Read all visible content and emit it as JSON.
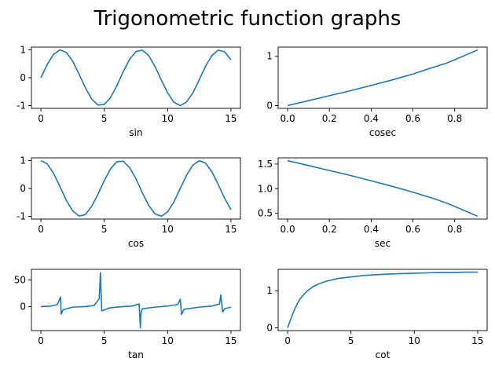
{
  "title": "Trigonometric function graphs",
  "colors": {
    "line": "#1f77b4",
    "axis": "#000000",
    "background": "#ffffff"
  },
  "chart_data": [
    {
      "id": "sin",
      "type": "line",
      "title": "",
      "xlabel": "sin",
      "ylabel": "",
      "xlim": [
        0,
        15
      ],
      "ylim": [
        -1,
        1
      ],
      "xticks": [
        0,
        5,
        10,
        15
      ],
      "yticks": [
        -1,
        0,
        1
      ],
      "grid": false,
      "series": [
        {
          "x": [
            0,
            0.5,
            1,
            1.5,
            2,
            2.5,
            3,
            3.5,
            4,
            4.5,
            5,
            5.5,
            6,
            6.5,
            7,
            7.5,
            8,
            8.5,
            9,
            9.5,
            10,
            10.5,
            11,
            11.5,
            12,
            12.5,
            13,
            13.5,
            14,
            14.5,
            15
          ],
          "y": [
            0,
            0.48,
            0.84,
            1.0,
            0.91,
            0.6,
            0.14,
            -0.35,
            -0.76,
            -0.98,
            -0.96,
            -0.71,
            -0.28,
            0.22,
            0.66,
            0.94,
            0.99,
            0.8,
            0.41,
            -0.08,
            -0.54,
            -0.88,
            -1.0,
            -0.87,
            -0.54,
            -0.07,
            0.42,
            0.8,
            0.99,
            0.93,
            0.65
          ]
        }
      ]
    },
    {
      "id": "cosec",
      "type": "line",
      "title": "",
      "xlabel": "cosec",
      "ylabel": "",
      "xlim": [
        0,
        0.91
      ],
      "ylim": [
        0,
        1.13
      ],
      "xticks": [
        0.0,
        0.2,
        0.4,
        0.6,
        0.8
      ],
      "yticks": [
        0,
        1
      ],
      "grid": false,
      "series": [
        {
          "x": [
            0,
            0.1,
            0.2,
            0.3,
            0.4,
            0.5,
            0.6,
            0.7,
            0.76,
            0.8,
            0.85,
            0.91
          ],
          "y": [
            0,
            0.1,
            0.2,
            0.3,
            0.41,
            0.52,
            0.64,
            0.78,
            0.86,
            0.93,
            1.02,
            1.13
          ]
        }
      ]
    },
    {
      "id": "cos",
      "type": "line",
      "title": "",
      "xlabel": "cos",
      "ylabel": "",
      "xlim": [
        0,
        15
      ],
      "ylim": [
        -1,
        1
      ],
      "xticks": [
        0,
        5,
        10,
        15
      ],
      "yticks": [
        -1,
        0,
        1
      ],
      "grid": false,
      "series": [
        {
          "x": [
            0,
            0.5,
            1,
            1.5,
            2,
            2.5,
            3,
            3.5,
            4,
            4.5,
            5,
            5.5,
            6,
            6.5,
            7,
            7.5,
            8,
            8.5,
            9,
            9.5,
            10,
            10.5,
            11,
            11.5,
            12,
            12.5,
            13,
            13.5,
            14,
            14.5,
            15
          ],
          "y": [
            1.0,
            0.88,
            0.54,
            0.07,
            -0.42,
            -0.8,
            -0.99,
            -0.94,
            -0.65,
            -0.21,
            0.28,
            0.71,
            0.96,
            0.98,
            0.75,
            0.35,
            -0.15,
            -0.6,
            -0.91,
            -1.0,
            -0.84,
            -0.48,
            0.0,
            0.48,
            0.84,
            1.0,
            0.91,
            0.6,
            0.14,
            -0.35,
            -0.76
          ]
        }
      ]
    },
    {
      "id": "sec",
      "type": "line",
      "title": "",
      "xlabel": "sec",
      "ylabel": "",
      "xlim": [
        0,
        0.91
      ],
      "ylim": [
        0.44,
        1.57
      ],
      "xticks": [
        0.0,
        0.2,
        0.4,
        0.6,
        0.8
      ],
      "yticks": [
        0.5,
        1.0,
        1.5
      ],
      "grid": false,
      "series": [
        {
          "x": [
            0,
            0.1,
            0.2,
            0.3,
            0.4,
            0.5,
            0.6,
            0.7,
            0.76,
            0.8,
            0.85,
            0.91
          ],
          "y": [
            1.57,
            1.47,
            1.37,
            1.27,
            1.16,
            1.05,
            0.93,
            0.8,
            0.71,
            0.64,
            0.55,
            0.44
          ]
        }
      ]
    },
    {
      "id": "tan",
      "type": "line",
      "title": "",
      "xlabel": "tan",
      "ylabel": "",
      "xlim": [
        0,
        15
      ],
      "ylim": [
        -40,
        65
      ],
      "xticks": [
        0,
        5,
        10,
        15
      ],
      "yticks": [
        0,
        50
      ],
      "grid": false,
      "series": [
        {
          "x": [
            0,
            0.8,
            1.3,
            1.55,
            1.6,
            1.75,
            2.5,
            3.5,
            4.2,
            4.6,
            4.7,
            4.8,
            5.5,
            6.5,
            7.2,
            7.75,
            7.85,
            7.9,
            8.0,
            9.0,
            10.0,
            10.8,
            11.0,
            11.1,
            11.3,
            12.5,
            13.5,
            14.1,
            14.2,
            14.35,
            14.5,
            15.0
          ],
          "y": [
            0,
            1,
            4,
            18,
            -14,
            -6,
            -1,
            0,
            2,
            15,
            64,
            -8,
            -2,
            0,
            1,
            5,
            -40,
            -12,
            -4,
            -1,
            1,
            4,
            14,
            -15,
            -5,
            -1,
            1,
            5,
            22,
            -10,
            -4,
            -1
          ]
        }
      ]
    },
    {
      "id": "cot",
      "type": "line",
      "title": "",
      "xlabel": "cot",
      "ylabel": "",
      "xlim": [
        0,
        15
      ],
      "ylim": [
        0,
        1.5
      ],
      "xticks": [
        0,
        5,
        10,
        15
      ],
      "yticks": [
        0,
        1
      ],
      "grid": false,
      "series": [
        {
          "x": [
            0,
            0.25,
            0.5,
            0.75,
            1,
            1.5,
            2,
            2.5,
            3,
            4,
            5,
            6,
            7,
            8,
            9,
            10,
            11,
            12,
            13,
            14,
            15
          ],
          "y": [
            0,
            0.24,
            0.46,
            0.64,
            0.79,
            0.98,
            1.11,
            1.19,
            1.25,
            1.33,
            1.37,
            1.41,
            1.43,
            1.45,
            1.46,
            1.47,
            1.48,
            1.49,
            1.49,
            1.5,
            1.5
          ]
        }
      ]
    }
  ]
}
